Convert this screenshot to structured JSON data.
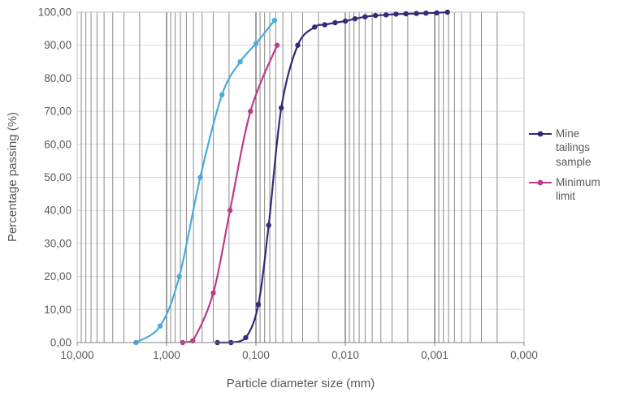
{
  "chart_data": {
    "type": "line",
    "title": "",
    "xlabel": "Particle diameter size (mm)",
    "ylabel": "Percentage passing (%)",
    "x_scale": "log",
    "x_reversed": true,
    "xlim": [
      10,
      0.0001
    ],
    "ylim": [
      0,
      100
    ],
    "grid": {
      "vertical_major": true,
      "vertical_minor": true,
      "horizontal": true
    },
    "legend_position": "right",
    "x_ticks": {
      "values": [
        10,
        1,
        0.1,
        0.01,
        0.001,
        0.0001
      ],
      "labels": [
        "10,000",
        "1,000",
        "0,100",
        "0,010",
        "0,001",
        "0,000"
      ]
    },
    "y_ticks": {
      "values": [
        0,
        10,
        20,
        30,
        40,
        50,
        60,
        70,
        80,
        90,
        100
      ],
      "labels": [
        "0,00",
        "10,00",
        "20,00",
        "30,00",
        "40,00",
        "50,00",
        "60,00",
        "70,00",
        "80,00",
        "90,00",
        "100,00"
      ]
    },
    "series": [
      {
        "name": "Mine tailings sample",
        "color": "#312B78",
        "in_legend": true,
        "points": [
          [
            0.27,
            0
          ],
          [
            0.19,
            0
          ],
          [
            0.13,
            1.5
          ],
          [
            0.094,
            11.5
          ],
          [
            0.072,
            35.5
          ],
          [
            0.052,
            71
          ],
          [
            0.034,
            90
          ],
          [
            0.022,
            95.5
          ],
          [
            0.017,
            96.2
          ],
          [
            0.013,
            96.8
          ],
          [
            0.01,
            97.3
          ],
          [
            0.0078,
            98
          ],
          [
            0.006,
            98.6
          ],
          [
            0.0046,
            99
          ],
          [
            0.0035,
            99.2
          ],
          [
            0.0027,
            99.4
          ],
          [
            0.0021,
            99.5
          ],
          [
            0.0016,
            99.6
          ],
          [
            0.00125,
            99.7
          ],
          [
            0.00095,
            99.8
          ],
          [
            0.00072,
            100
          ]
        ]
      },
      {
        "name": "Minimum limit",
        "color": "#BE3A8C",
        "in_legend": true,
        "points": [
          [
            0.66,
            0
          ],
          [
            0.51,
            0.5
          ],
          [
            0.3,
            15
          ],
          [
            0.195,
            40
          ],
          [
            0.115,
            70
          ],
          [
            0.058,
            90
          ]
        ]
      },
      {
        "name": "",
        "color": "#47ACDE",
        "in_legend": false,
        "points": [
          [
            2.2,
            0
          ],
          [
            1.18,
            5
          ],
          [
            0.72,
            20
          ],
          [
            0.42,
            50
          ],
          [
            0.24,
            75
          ],
          [
            0.15,
            85
          ],
          [
            0.1,
            90.5
          ],
          [
            0.062,
            97.5
          ]
        ]
      }
    ]
  }
}
